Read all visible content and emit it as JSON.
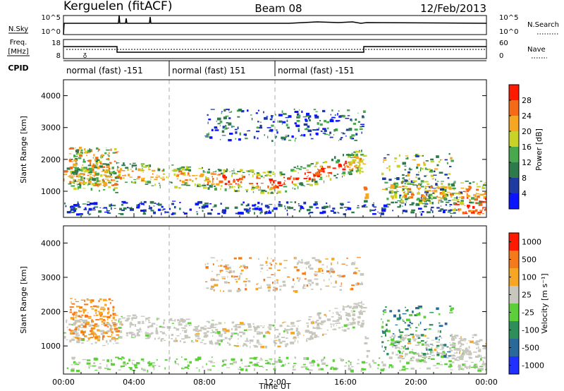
{
  "header": {
    "station": "Kerguelen (fitACF)",
    "beam": "Beam 08",
    "date": "12/Feb/2013"
  },
  "top_panels": {
    "nsky_label": "N.Sky",
    "nsearch_label": "N.Search",
    "freq_label_1": "Freq.",
    "freq_label_2": "[MHz]",
    "nave_label": "Nave",
    "cpid_label": "CPID",
    "nsky_ticks": [
      "10^5",
      "10^0"
    ],
    "nsearch_ticks": [
      "10^5",
      "10^0"
    ],
    "freq_ticks": [
      "18",
      "8"
    ],
    "nave_ticks": [
      "60",
      "0"
    ],
    "cpid_segments": [
      {
        "label": "normal (fast) -151",
        "start_hour": 0,
        "end_hour": 6
      },
      {
        "label": "normal (fast) 151",
        "start_hour": 6,
        "end_hour": 12
      },
      {
        "label": "normal (fast) -151",
        "start_hour": 12,
        "end_hour": 24
      }
    ]
  },
  "colors": {
    "power": [
      "#0a14ff",
      "#1f3ba0",
      "#2e7a4a",
      "#49a84e",
      "#c8d227",
      "#f5a623",
      "#f56a17",
      "#ff1a00"
    ],
    "velocity": [
      "#2030ff",
      "#2a6a9a",
      "#2f8f5a",
      "#5ccf3a",
      "#c8c7be",
      "#f5a623",
      "#f57a1a",
      "#ff1a00"
    ]
  },
  "chart_data": [
    {
      "type": "heatmap",
      "name": "power",
      "ylabel": "Slant Range [km]",
      "colorbar_label": "Power [dB]",
      "colorbar_ticks": [
        "28",
        "24",
        "20",
        "16",
        "12",
        "8",
        "4"
      ],
      "ylim": [
        180,
        4500
      ],
      "yticks": [
        "1000",
        "2000",
        "3000",
        "4000"
      ],
      "xlim": [
        0,
        24
      ],
      "grid": false
    },
    {
      "type": "heatmap",
      "name": "velocity",
      "ylabel": "Slant Range [km]",
      "colorbar_label": "Velocity [m s⁻¹]",
      "colorbar_ticks": [
        "1000",
        "500",
        "100",
        "25",
        "-25",
        "-100",
        "-500",
        "-1000"
      ],
      "ylim": [
        180,
        4500
      ],
      "yticks": [
        "1000",
        "2000",
        "3000",
        "4000"
      ],
      "xlabel": "Time UT",
      "xticks": [
        "00:00",
        "04:00",
        "08:00",
        "12:00",
        "16:00",
        "20:00",
        "00:00"
      ],
      "xlim": [
        0,
        24
      ],
      "grid": false
    }
  ]
}
